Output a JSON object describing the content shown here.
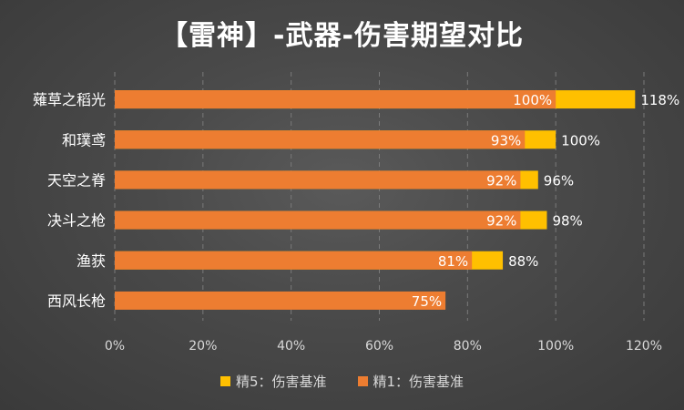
{
  "chart_data": {
    "type": "bar",
    "orientation": "horizontal",
    "title": "【雷神】-武器-伤害期望对比",
    "categories": [
      "薙草之稻光",
      "和璞鸢",
      "天空之脊",
      "决斗之枪",
      "渔获",
      "西风长枪"
    ],
    "series": [
      {
        "name": "精5：伤害基准",
        "color": "#ffc000",
        "values": [
          118,
          100,
          96,
          98,
          88,
          null
        ],
        "labels": [
          "118%",
          "100%",
          "96%",
          "98%",
          "88%",
          ""
        ]
      },
      {
        "name": "精1：伤害基准",
        "color": "#ed7d31",
        "values": [
          100,
          93,
          92,
          92,
          81,
          75
        ],
        "labels": [
          "100%",
          "93%",
          "92%",
          "92%",
          "81%",
          "75%"
        ]
      }
    ],
    "xlim": [
      0,
      120
    ],
    "xticks": [
      "0%",
      "20%",
      "40%",
      "60%",
      "80%",
      "100%",
      "120%"
    ],
    "grid": true,
    "legend_position": "bottom"
  }
}
